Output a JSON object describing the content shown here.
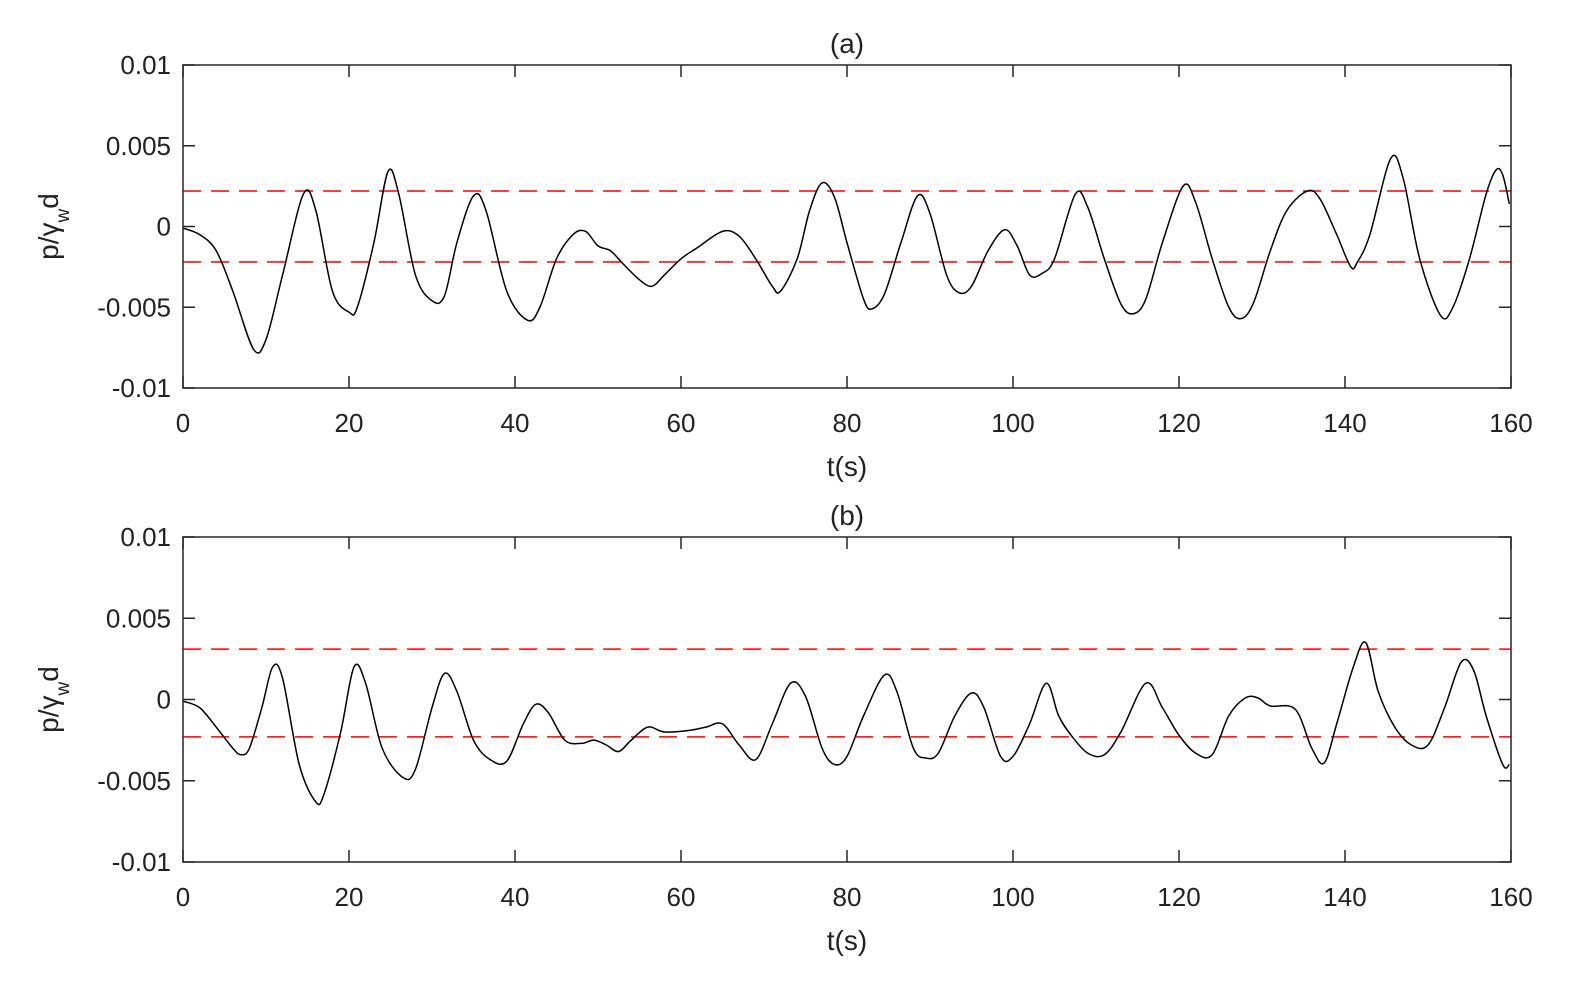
{
  "chart_data": [
    {
      "type": "line",
      "title": "(a)",
      "xlabel": "t(s)",
      "ylabel": [
        "p/γ",
        "w",
        "d"
      ],
      "xlim": [
        0,
        160
      ],
      "ylim": [
        -0.01,
        0.01
      ],
      "xticks": [
        0,
        20,
        40,
        60,
        80,
        100,
        120,
        140,
        160
      ],
      "yticks": [
        -0.01,
        -0.005,
        0,
        0.005,
        0.01
      ],
      "color": "#000000",
      "reference_lines": [
        0.0022,
        -0.0022
      ],
      "reference_color": "#ff0000",
      "x": [
        0,
        2,
        4,
        6,
        8.5,
        10,
        12,
        14.5,
        16,
        18,
        20,
        21,
        23,
        24.7,
        26,
        28,
        30,
        31.5,
        33,
        35,
        36.5,
        39,
        41.5,
        43,
        45,
        47,
        48.5,
        50,
        51.5,
        53,
        55,
        56.5,
        58,
        60,
        62,
        65,
        67,
        69,
        71,
        72,
        74,
        75.5,
        77,
        78.5,
        80,
        82,
        83,
        84.5,
        86.5,
        88.5,
        90,
        92,
        93.5,
        95,
        97,
        99,
        100.5,
        102,
        103.5,
        105,
        107.5,
        109,
        111,
        113,
        114.5,
        116,
        118,
        120.5,
        122,
        124,
        126,
        127.5,
        129,
        131,
        133,
        135.5,
        137,
        139,
        140.7,
        141.5,
        143,
        145.5,
        147,
        149,
        151.5,
        153,
        155,
        157,
        158.2,
        159,
        159.8
      ],
      "values": [
        -0.0001,
        -0.0005,
        -0.0015,
        -0.004,
        -0.0076,
        -0.007,
        -0.003,
        0.002,
        0.001,
        -0.004,
        -0.0053,
        -0.005,
        -0.001,
        0.0034,
        0.002,
        -0.003,
        -0.0046,
        -0.0043,
        -0.001,
        0.0019,
        0.001,
        -0.004,
        -0.0058,
        -0.005,
        -0.002,
        -0.0005,
        -0.0003,
        -0.0012,
        -0.0015,
        -0.0023,
        -0.0033,
        -0.0037,
        -0.003,
        -0.002,
        -0.0013,
        -0.0003,
        -0.0006,
        -0.002,
        -0.0037,
        -0.004,
        -0.002,
        0.001,
        0.0027,
        0.0018,
        -0.001,
        -0.0045,
        -0.0051,
        -0.0042,
        -0.001,
        0.0019,
        0.0008,
        -0.003,
        -0.0041,
        -0.0037,
        -0.0015,
        -0.0002,
        -0.0012,
        -0.003,
        -0.0029,
        -0.002,
        0.002,
        0.0012,
        -0.002,
        -0.0048,
        -0.0054,
        -0.0045,
        -0.001,
        0.0025,
        0.0015,
        -0.002,
        -0.005,
        -0.0057,
        -0.0047,
        -0.0015,
        0.001,
        0.0022,
        0.0017,
        -0.0005,
        -0.0025,
        -0.0022,
        -0.0005,
        0.0042,
        0.003,
        -0.002,
        -0.0055,
        -0.005,
        -0.002,
        0.002,
        0.0035,
        0.0032,
        0.0014
      ]
    },
    {
      "type": "line",
      "title": "(b)",
      "xlabel": "t(s)",
      "ylabel": [
        "p/γ",
        "w",
        "d"
      ],
      "xlim": [
        0,
        160
      ],
      "ylim": [
        -0.01,
        0.01
      ],
      "xticks": [
        0,
        20,
        40,
        60,
        80,
        100,
        120,
        140,
        160
      ],
      "yticks": [
        -0.01,
        -0.005,
        0,
        0.005,
        0.01
      ],
      "color": "#000000",
      "reference_lines": [
        0.0031,
        -0.0023
      ],
      "reference_color": "#ff0000",
      "x": [
        0,
        2,
        4,
        6,
        7,
        8,
        9.5,
        10.8,
        12,
        14,
        16,
        17,
        19,
        20.6,
        22,
        24,
        26.5,
        28,
        30,
        31.5,
        33,
        35,
        37,
        39,
        41,
        42.5,
        44,
        46,
        48,
        49.5,
        51,
        52.5,
        54,
        56,
        58,
        61,
        63,
        65,
        67,
        69,
        71,
        73.2,
        75,
        77,
        78.5,
        80,
        82,
        84.5,
        86,
        88,
        89.5,
        91,
        93,
        95,
        96.5,
        98.5,
        100,
        102,
        104,
        105.5,
        107,
        109,
        111,
        113,
        116,
        118,
        120,
        122,
        124,
        126,
        128,
        129.5,
        131,
        134,
        136,
        137.5,
        139,
        141,
        142.5,
        144,
        146,
        148,
        150,
        152,
        154,
        155.5,
        157,
        159,
        159.8
      ],
      "values": [
        -0.0001,
        -0.0005,
        -0.0017,
        -0.003,
        -0.0034,
        -0.003,
        -0.0005,
        0.002,
        0.0013,
        -0.004,
        -0.0063,
        -0.0058,
        -0.002,
        0.002,
        0.001,
        -0.003,
        -0.0048,
        -0.0043,
        -0.0005,
        0.0016,
        0.0005,
        -0.0025,
        -0.0037,
        -0.0038,
        -0.0015,
        -0.0003,
        -0.0008,
        -0.0025,
        -0.0027,
        -0.0025,
        -0.0028,
        -0.0032,
        -0.0025,
        -0.0017,
        -0.002,
        -0.0019,
        -0.0017,
        -0.0015,
        -0.0028,
        -0.0037,
        -0.0015,
        0.001,
        0.0002,
        -0.003,
        -0.004,
        -0.0035,
        -0.001,
        0.0015,
        0.0005,
        -0.003,
        -0.0036,
        -0.0033,
        -0.001,
        0.0004,
        -0.0005,
        -0.0035,
        -0.0035,
        -0.0015,
        0.001,
        -0.001,
        -0.0022,
        -0.0033,
        -0.0034,
        -0.002,
        0.001,
        -0.0005,
        -0.0022,
        -0.0033,
        -0.0034,
        -0.001,
        0.0001,
        0.0001,
        -0.0004,
        -0.0006,
        -0.003,
        -0.0039,
        -0.0015,
        0.002,
        0.0035,
        0.0005,
        -0.0017,
        -0.0028,
        -0.0028,
        -0.0005,
        0.0023,
        0.0018,
        -0.001,
        -0.004,
        -0.004
      ]
    }
  ]
}
